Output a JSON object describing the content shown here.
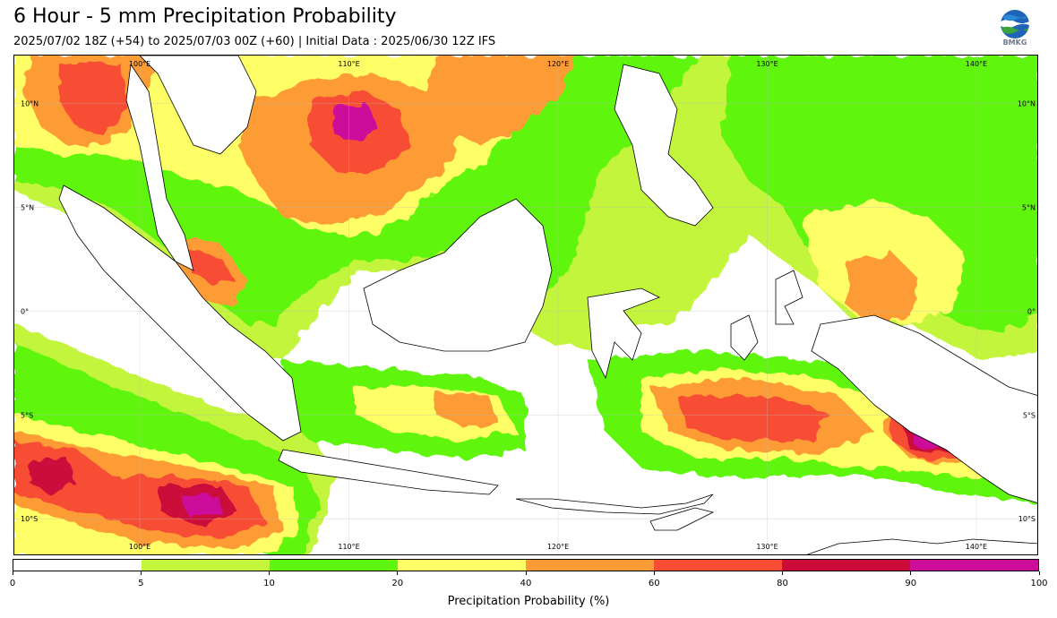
{
  "header": {
    "title": "6 Hour - 5 mm Precipitation Probability",
    "subtitle": "2025/07/02 18Z (+54) to 2025/07/03 00Z (+60) | Initial Data : 2025/06/30 12Z IFS",
    "logo_text": "BMKG"
  },
  "map": {
    "top_lon_labels": [
      "100°E",
      "110°E",
      "120°E",
      "130°E",
      "140°E"
    ],
    "bottom_lon_labels": [
      "100°E",
      "110°E",
      "120°E",
      "130°E",
      "140°E"
    ],
    "left_lat_labels": [
      "10°N",
      "5°N",
      "0°",
      "5°S",
      "10°S"
    ],
    "right_lat_labels": [
      "10°N",
      "5°N",
      "0°",
      "5°S",
      "10°S"
    ],
    "lon_values": [
      100,
      110,
      120,
      130,
      140
    ],
    "lat_values": [
      10,
      5,
      0,
      -5,
      -10
    ],
    "lon_range": [
      94,
      143
    ],
    "lat_range": [
      -11.8,
      12.3
    ]
  },
  "legend": {
    "label": "Precipitation Probability (%)",
    "ticks": [
      "0",
      "5",
      "10",
      "20",
      "40",
      "60",
      "80",
      "90",
      "100"
    ],
    "colors": [
      "#ffffff",
      "#c3f53d",
      "#5ef50f",
      "#fefe66",
      "#fd9c36",
      "#f84d34",
      "#cb0c3a",
      "#cb0d9a"
    ]
  }
}
